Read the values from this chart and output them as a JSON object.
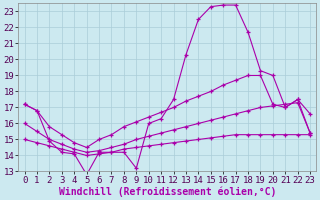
{
  "xlabel": "Windchill (Refroidissement éolien,°C)",
  "xlim": [
    -0.5,
    23.5
  ],
  "ylim": [
    13,
    23.5
  ],
  "xticks": [
    0,
    1,
    2,
    3,
    4,
    5,
    6,
    7,
    8,
    9,
    10,
    11,
    12,
    13,
    14,
    15,
    16,
    17,
    18,
    19,
    20,
    21,
    22,
    23
  ],
  "yticks": [
    13,
    14,
    15,
    16,
    17,
    18,
    19,
    20,
    21,
    22,
    23
  ],
  "background_color": "#cce9f0",
  "grid_color": "#aacdd8",
  "line_color": "#aa00aa",
  "line1_y": [
    17.2,
    16.8,
    14.9,
    14.2,
    14.1,
    12.8,
    14.2,
    14.2,
    14.2,
    13.2,
    16.0,
    16.3,
    17.5,
    20.3,
    22.5,
    23.3,
    23.4,
    23.4,
    21.7,
    19.3,
    19.0,
    17.0,
    17.5,
    16.6
  ],
  "line2_y": [
    17.2,
    16.8,
    15.8,
    15.3,
    14.8,
    14.5,
    15.0,
    15.3,
    15.8,
    16.1,
    16.4,
    16.7,
    17.0,
    17.4,
    17.7,
    18.0,
    18.4,
    18.7,
    19.0,
    19.0,
    17.2,
    17.0,
    17.5,
    15.4
  ],
  "line3_y": [
    16.0,
    15.5,
    15.0,
    14.7,
    14.4,
    14.2,
    14.3,
    14.5,
    14.7,
    15.0,
    15.2,
    15.4,
    15.6,
    15.8,
    16.0,
    16.2,
    16.4,
    16.6,
    16.8,
    17.0,
    17.1,
    17.2,
    17.3,
    15.4
  ],
  "line4_y": [
    15.0,
    14.8,
    14.6,
    14.4,
    14.2,
    14.0,
    14.1,
    14.2,
    14.4,
    14.5,
    14.6,
    14.7,
    14.8,
    14.9,
    15.0,
    15.1,
    15.2,
    15.3,
    15.3,
    15.3,
    15.3,
    15.3,
    15.3,
    15.3
  ],
  "tick_fontsize": 6.5,
  "xlabel_fontsize": 7
}
